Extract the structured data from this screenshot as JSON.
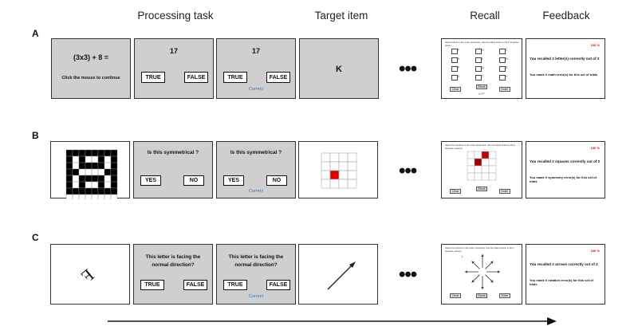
{
  "headers": {
    "processing": "Processing task",
    "target": "Target item",
    "recall": "Recall",
    "feedback": "Feedback"
  },
  "rows": {
    "a": {
      "label": "A",
      "equation": "(3x3) + 8 =",
      "instruction": "Click the mouse to continue",
      "number": "17",
      "true_label": "TRUE",
      "false_label": "FALSE",
      "correct": "Correct",
      "target_letter": "K",
      "recall_instruction": "Select letters in the order presented. Use the blank button to fill in forgotten letters.",
      "recall_letters": [
        "F",
        "H",
        "J",
        "K",
        "L",
        "N",
        "P",
        "Q",
        "R",
        "S",
        "T",
        "Y"
      ],
      "recall_entered": "KTP",
      "recall_buttons": {
        "clear": "Clear",
        "blank": "Blank",
        "enter": "Enter"
      },
      "feedback_pct": "100 %",
      "feedback_line1": "You recalled 3 letter(s) correctly out of 3",
      "feedback_line2": "You made 0 math error(s) for this set of trials"
    },
    "b": {
      "label": "B",
      "question": "Is this symmetrical ?",
      "yes_label": "YES",
      "no_label": "NO",
      "correct": "Correct",
      "recall_instruction": "Select the squares in the order presented. Use the blank button to fill in forgotten squares.",
      "recall_buttons": {
        "clear": "Clear",
        "blank": "Blank",
        "enter": "Enter"
      },
      "feedback_pct": "100 %",
      "feedback_line1": "You recalled 2 squares correctly out of 2",
      "feedback_line2": "You made 0 symmetry error(s) for this set of trials"
    },
    "c": {
      "label": "C",
      "letter": "F",
      "question_line1": "This letter is facing the",
      "question_line2": "normal direction?",
      "true_label": "TRUE",
      "false_label": "FALSE",
      "correct": "Correct",
      "recall_instruction": "Select the arrows in the order presented. Use the blank button to fill in forgotten arrows.",
      "recall_buttons": {
        "clear": "Clear",
        "blank": "Blank",
        "enter": "Enter"
      },
      "feedback_pct": "100 %",
      "feedback_line1": "You recalled 2 arrows correctly out of 2",
      "feedback_line2": "You made 0 rotation error(s) for this set of trials"
    }
  },
  "ellipsis": "•••",
  "timeline_arrow": "time-arrow",
  "colors": {
    "panel_gray": "#cfcfcf",
    "red": "#e00000",
    "correct_blue": "#2c72c7"
  }
}
